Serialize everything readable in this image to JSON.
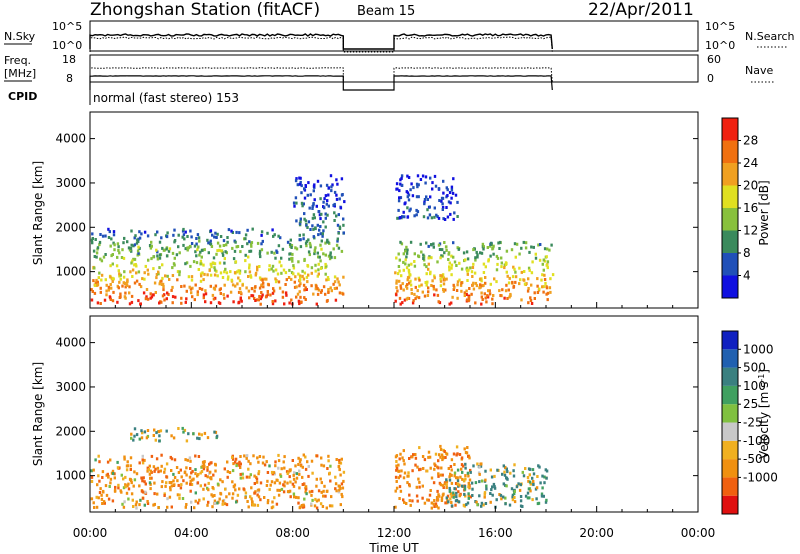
{
  "header": {
    "station": "Zhongshan Station (fitACF)",
    "beam": "Beam 15",
    "date": "22/Apr/2011"
  },
  "top_panels": {
    "nsky_label": "N.Sky",
    "nsky_ticks": [
      "10^5",
      "10^0"
    ],
    "nsearch_label": "N.Search",
    "nsearch_ticks": [
      "10^5",
      "10^0"
    ],
    "freq_label": "Freq.",
    "freq_unit": "[MHz]",
    "freq_ticks": [
      "18",
      "8"
    ],
    "nave_label": "Nave",
    "nave_ticks": [
      "60",
      "0"
    ],
    "cpid_label": "CPID",
    "cpid_text": "normal (fast stereo) 153"
  },
  "colors": {
    "power": [
      "#1010e0",
      "#2050b8",
      "#3a8a5c",
      "#88c03c",
      "#e0e020",
      "#f0a020",
      "#f07010",
      "#f02010"
    ],
    "velocity": [
      "#e01010",
      "#f06010",
      "#f09010",
      "#f0b020",
      "#c8c8c8",
      "#80c040",
      "#40a060",
      "#3a8080",
      "#2060b0",
      "#1020c0"
    ]
  },
  "chart_data": [
    {
      "type": "heatmap",
      "title": "",
      "xlabel": "Time UT",
      "ylabel": "Slant Range [km]",
      "xlim": [
        "00:00",
        "24:00"
      ],
      "ylim": [
        180,
        4600
      ],
      "x_ticks": [
        "00:00",
        "04:00",
        "08:00",
        "12:00",
        "16:00",
        "20:00",
        "00:00"
      ],
      "y_ticks": [
        "1000",
        "2000",
        "3000",
        "4000"
      ],
      "colorbar": {
        "label": "Power [dB]",
        "ticks": [
          "4",
          "8",
          "12",
          "16",
          "20",
          "24",
          "28"
        ],
        "range": [
          0,
          32
        ]
      },
      "data_gaps": [
        [
          "10:00",
          "12:00"
        ],
        [
          "18:15",
          "24:00"
        ]
      ],
      "echo_regions": [
        {
          "time_start": "00:00",
          "time_end": "10:00",
          "range_start_km": 300,
          "range_end_km": 1500,
          "peak_power_db": 30
        },
        {
          "time_start": "00:00",
          "time_end": "10:00",
          "range_start_km": 1500,
          "range_end_km": 2000,
          "peak_power_db": 14
        },
        {
          "time_start": "08:00",
          "time_end": "10:00",
          "range_start_km": 2000,
          "range_end_km": 3200,
          "peak_power_db": 8
        },
        {
          "time_start": "12:00",
          "time_end": "18:15",
          "range_start_km": 300,
          "range_end_km": 1700,
          "peak_power_db": 28
        },
        {
          "time_start": "12:00",
          "time_end": "14:30",
          "range_start_km": 2200,
          "range_end_km": 3200,
          "peak_power_db": 6
        }
      ]
    },
    {
      "type": "heatmap",
      "title": "",
      "xlabel": "Time UT",
      "ylabel": "Slant Range [km]",
      "xlim": [
        "00:00",
        "24:00"
      ],
      "ylim": [
        180,
        4600
      ],
      "x_ticks": [
        "00:00",
        "04:00",
        "08:00",
        "12:00",
        "16:00",
        "20:00",
        "00:00"
      ],
      "y_ticks": [
        "1000",
        "2000",
        "3000",
        "4000"
      ],
      "colorbar": {
        "label": "Velocity [m s^-1]",
        "ticks": [
          "1000",
          "500",
          "100",
          "25",
          "-25",
          "-100",
          "-500",
          "-1000"
        ],
        "range": [
          -1200,
          1200
        ]
      },
      "data_gaps": [
        [
          "10:00",
          "12:00"
        ],
        [
          "18:15",
          "24:00"
        ]
      ],
      "echo_regions": [
        {
          "time_start": "00:00",
          "time_end": "10:00",
          "range_start_km": 300,
          "range_end_km": 1500,
          "velocity_ms": -300
        },
        {
          "time_start": "01:30",
          "time_end": "05:00",
          "range_start_km": 1800,
          "range_end_km": 2100,
          "velocity_ms": 0
        },
        {
          "time_start": "12:00",
          "time_end": "15:00",
          "range_start_km": 300,
          "range_end_km": 1700,
          "velocity_ms": -400
        },
        {
          "time_start": "14:00",
          "time_end": "18:00",
          "range_start_km": 300,
          "range_end_km": 1300,
          "velocity_ms": 150
        }
      ]
    }
  ]
}
